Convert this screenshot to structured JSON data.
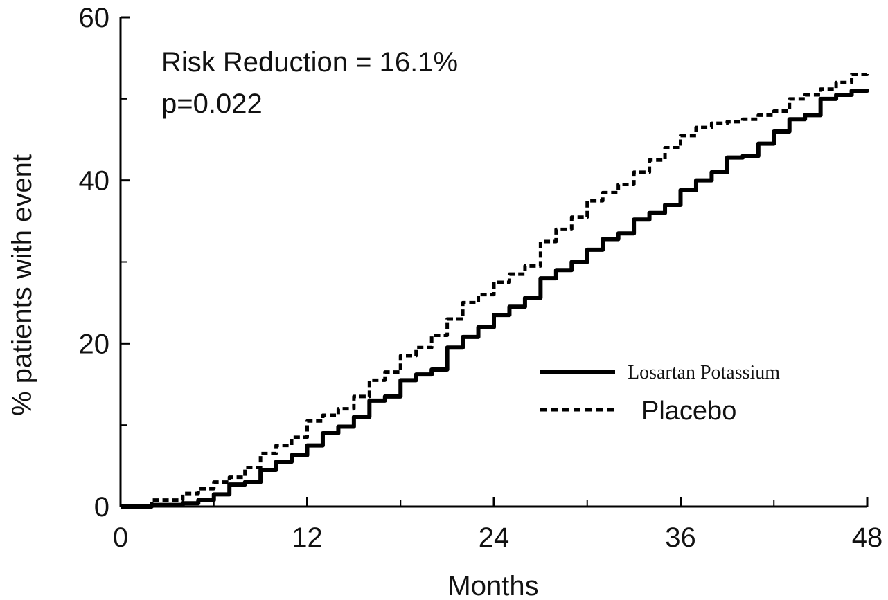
{
  "chart_data": {
    "type": "line",
    "xlabel": "Months",
    "ylabel": "% patients with event",
    "xlim": [
      0,
      48
    ],
    "ylim": [
      0,
      60
    ],
    "xticks_major": [
      0,
      12,
      24,
      36,
      48
    ],
    "xticks_minor": [
      6,
      18,
      30,
      42
    ],
    "yticks_major": [
      0,
      20,
      40,
      60
    ],
    "yticks_minor": [
      10,
      30,
      50
    ],
    "annotations": [
      "Risk Reduction = 16.1%",
      "p=0.022"
    ],
    "grid": false,
    "legend_position": "right",
    "series": [
      {
        "name": "Losartan Potassium",
        "style": "solid",
        "x": [
          0,
          2,
          4,
          5,
          6,
          7,
          8,
          9,
          10,
          11,
          12,
          13,
          14,
          15,
          16,
          17,
          18,
          19,
          20,
          21,
          22,
          23,
          24,
          25,
          26,
          27,
          28,
          29,
          30,
          31,
          32,
          33,
          34,
          35,
          36,
          37,
          38,
          39,
          40,
          41,
          42,
          43,
          44,
          45,
          46,
          47,
          48
        ],
        "values": [
          0,
          0.2,
          0.4,
          0.8,
          1.5,
          2.7,
          3.0,
          4.5,
          5.5,
          6.3,
          7.5,
          9.0,
          9.8,
          11.0,
          13.0,
          13.5,
          15.5,
          16.2,
          16.8,
          19.5,
          20.8,
          22.0,
          23.5,
          24.5,
          25.6,
          28.0,
          29.0,
          30.0,
          31.5,
          32.8,
          33.5,
          35.2,
          36.0,
          37.0,
          38.8,
          40.0,
          41.0,
          42.8,
          43.0,
          44.5,
          46.0,
          47.5,
          48.0,
          50.0,
          50.5,
          51.0,
          51.2
        ]
      },
      {
        "name": "Placebo",
        "style": "dashed",
        "x": [
          0,
          2,
          4,
          5,
          6,
          7,
          8,
          9,
          10,
          11,
          12,
          13,
          14,
          15,
          16,
          17,
          18,
          19,
          20,
          21,
          22,
          23,
          24,
          25,
          26,
          27,
          28,
          29,
          30,
          31,
          32,
          33,
          34,
          35,
          36,
          37,
          38,
          39,
          40,
          41,
          42,
          43,
          44,
          45,
          46,
          47,
          48
        ],
        "values": [
          0,
          0.8,
          1.6,
          2.2,
          3.0,
          3.6,
          4.8,
          6.5,
          7.5,
          8.5,
          10.5,
          11.2,
          12.0,
          13.5,
          15.5,
          16.5,
          18.5,
          19.5,
          21.0,
          23.0,
          25.0,
          26.0,
          27.5,
          28.5,
          29.5,
          32.5,
          34.0,
          35.5,
          37.5,
          38.5,
          39.5,
          41.0,
          42.5,
          44.0,
          45.5,
          46.5,
          47.0,
          47.2,
          47.5,
          48.0,
          48.5,
          50.0,
          50.5,
          51.2,
          52.0,
          53.0,
          53.2
        ]
      }
    ]
  }
}
